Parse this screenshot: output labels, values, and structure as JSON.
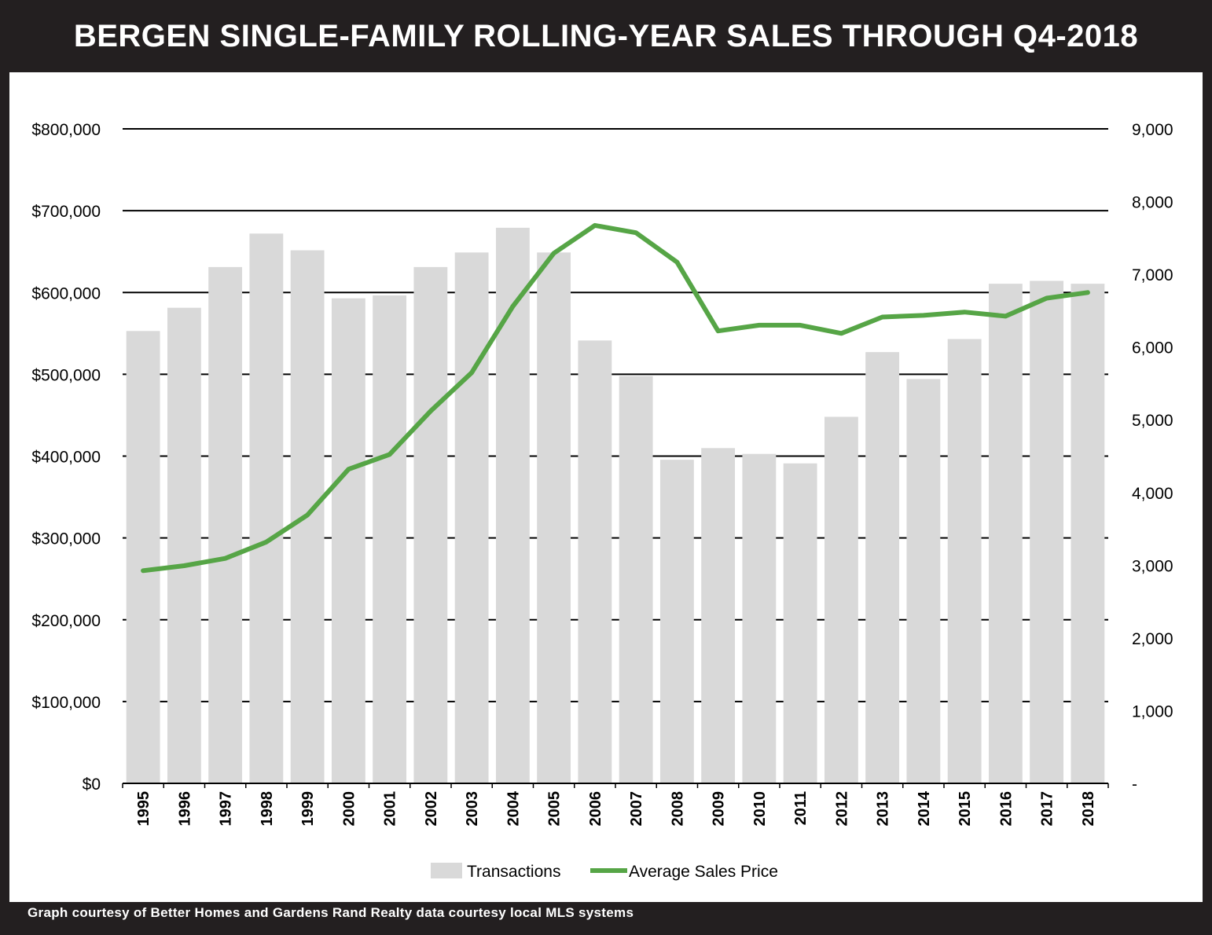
{
  "title": "BERGEN SINGLE-FAMILY ROLLING-YEAR SALES THROUGH Q4-2018",
  "footer": "Graph courtesy of Better Homes and Gardens Rand Realty data courtesy local MLS systems",
  "colors": {
    "frame": "#231f20",
    "bar": "#d9d9d9",
    "line": "#56a546",
    "grid": "#000000"
  },
  "chart_data": {
    "type": "bar",
    "title": "BERGEN SINGLE-FAMILY ROLLING-YEAR SALES THROUGH Q4-2018",
    "categories": [
      "1995",
      "1996",
      "1997",
      "1998",
      "1999",
      "2000",
      "2001",
      "2002",
      "2003",
      "2004",
      "2005",
      "2006",
      "2007",
      "2008",
      "2009",
      "2010",
      "2011",
      "2012",
      "2013",
      "2014",
      "2015",
      "2016",
      "2017",
      "2018"
    ],
    "series": [
      {
        "name": "Transactions",
        "type": "bar",
        "axis": "right",
        "values": [
          6220,
          6540,
          7100,
          7560,
          7330,
          6670,
          6710,
          7100,
          7300,
          7640,
          7300,
          6090,
          5600,
          4450,
          4610,
          4530,
          4400,
          5040,
          5930,
          5560,
          6110,
          6870,
          6910,
          6870
        ]
      },
      {
        "name": "Average Sales Price",
        "type": "line",
        "axis": "left",
        "values": [
          260000,
          266000,
          275000,
          295000,
          328000,
          384000,
          402000,
          455000,
          502000,
          583000,
          648000,
          682000,
          673000,
          637000,
          553000,
          560000,
          560000,
          550000,
          570000,
          572000,
          576000,
          571000,
          593000,
          600000
        ]
      }
    ],
    "y_left": {
      "min": 0,
      "max": 800000,
      "ticks": [
        "$0",
        "$100,000",
        "$200,000",
        "$300,000",
        "$400,000",
        "$500,000",
        "$600,000",
        "$700,000",
        "$800,000"
      ]
    },
    "y_right": {
      "min": 0,
      "max": 9000,
      "ticks": [
        "-",
        "1,000",
        "2,000",
        "3,000",
        "4,000",
        "5,000",
        "6,000",
        "7,000",
        "8,000",
        "9,000"
      ]
    },
    "grid": true,
    "legend_position": "bottom-center"
  }
}
